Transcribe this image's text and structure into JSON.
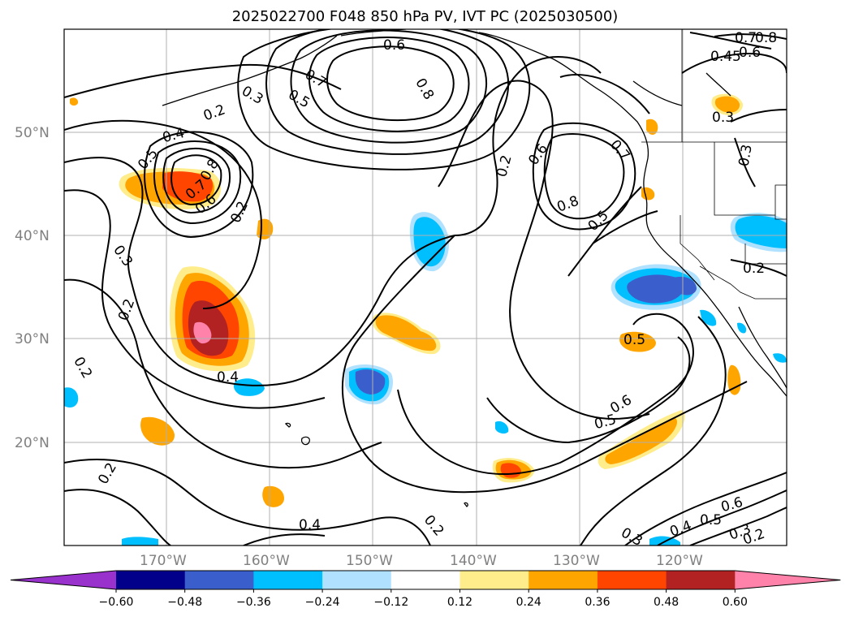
{
  "title": "2025022700 F048 850 hPa PV, IVT PC (2025030500)",
  "lat_labels": [
    "50°N",
    "40°N",
    "30°N",
    "20°N"
  ],
  "lon_labels": [
    "170°W",
    "160°W",
    "150°W",
    "140°W",
    "130°W",
    "120°W"
  ],
  "colorbar": {
    "ticks": [
      "−0.60",
      "−0.48",
      "−0.36",
      "−0.24",
      "−0.12",
      "0.12",
      "0.24",
      "0.36",
      "0.48",
      "0.60"
    ],
    "colors": [
      "#9932cc",
      "#00008b",
      "#3a5fcd",
      "#00bfff",
      "#b0e2ff",
      "#ffffff",
      "#ffec8b",
      "#ffa500",
      "#ff4500",
      "#b22222",
      "#ff82ab"
    ]
  },
  "contour_labels": [
    "0.6",
    "0.8",
    "0.7",
    "0.5",
    "0.3",
    "0.2",
    "0.4",
    "0.5",
    "0.8",
    "0.7",
    "0.6",
    "0.2",
    "0.3",
    "0.2",
    "0.4",
    "0.6",
    "0.8",
    "0.5",
    "0.7",
    "0.45",
    "0.6",
    "0.7",
    "0.8",
    "0.3",
    "0.3",
    "0.2",
    "0.5",
    "0.6",
    "0.5",
    "0.2",
    "0.4",
    "0.2",
    "0.2",
    "0.2",
    "0.3",
    "0.4",
    "0.5",
    "0.6",
    "0.3",
    "0.2"
  ]
}
